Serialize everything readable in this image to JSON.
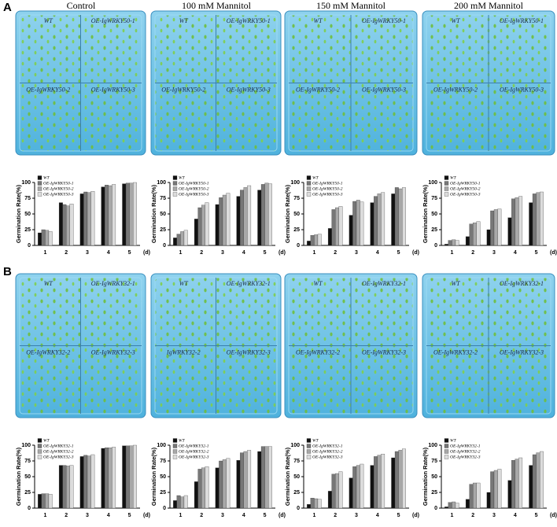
{
  "panel_labels": [
    "A",
    "B"
  ],
  "column_headers": [
    "Control",
    "100 mM Mannitol",
    "150 mM Mannitol",
    "200 mM Mannitol"
  ],
  "plates": [
    {
      "labels": [
        "WT",
        "OE-IgWRKY50-1",
        "OE-IgWRKY50-2",
        "OE-IgWRKY50-3"
      ]
    },
    {
      "labels": [
        "WT",
        "OE-IgWRKY50-1",
        "OE-IgWRKY50-2",
        "OE-IgWRKY50-3"
      ]
    },
    {
      "labels": [
        "WT",
        "OE-IgWRKY50-1",
        "OE-IgWRKY50-2",
        "OE-IgWRKY50-3"
      ]
    },
    {
      "labels": [
        "WT",
        "OE-IgWRKY50-1",
        "OE-IgWRKY50-2",
        "OE-IgWRKY50-3"
      ]
    },
    {
      "labels": [
        "WT",
        "OE-IgWRKY32-1",
        "OE-IgWRKY32-2",
        "OE-IgWRKY32-3"
      ]
    },
    {
      "labels": [
        "WT",
        "OE-IgWRKY32-1",
        "IgWRKY32-2",
        "OE-IgWRKY32-3"
      ]
    },
    {
      "labels": [
        "WT",
        "OE-IgWRKY32-1",
        "OE-IgWRKY32-2",
        "OE-IgWRKY32-3"
      ]
    },
    {
      "labels": [
        "WT",
        "OE-IgWRKY32-1",
        "OE-IgWRKY32-2",
        "OE-IgWRKY32-3"
      ]
    }
  ],
  "chart_data": [
    {
      "type": "bar",
      "ylabel": "Germination Rate(%)",
      "categories": [
        "1",
        "2",
        "3",
        "4",
        "5"
      ],
      "x_unit": "(d)",
      "ylim": [
        0,
        100
      ],
      "yticks": [
        0,
        25,
        50,
        75,
        100
      ],
      "series": [
        {
          "name": "WT",
          "color": "#111111",
          "values": [
            20,
            68,
            82,
            93,
            98
          ]
        },
        {
          "name": "OE-IgWRKY50-1",
          "color": "#777777",
          "values": [
            25,
            65,
            85,
            96,
            99
          ]
        },
        {
          "name": "OE-IgWRKY50-2",
          "color": "#a8a8a8",
          "values": [
            24,
            63,
            84,
            95,
            99
          ]
        },
        {
          "name": "OE-IgWRKY50-3",
          "color": "#dcdcdc",
          "values": [
            22,
            66,
            86,
            97,
            100
          ]
        }
      ]
    },
    {
      "type": "bar",
      "ylabel": "Germination Rate(%)",
      "categories": [
        "1",
        "2",
        "3",
        "4",
        "5"
      ],
      "x_unit": "(d)",
      "ylim": [
        0,
        100
      ],
      "yticks": [
        0,
        25,
        50,
        75,
        100
      ],
      "series": [
        {
          "name": "WT",
          "color": "#111111",
          "values": [
            12,
            42,
            65,
            78,
            88
          ]
        },
        {
          "name": "OE-IgWRKY50-1",
          "color": "#777777",
          "values": [
            18,
            60,
            76,
            88,
            97
          ]
        },
        {
          "name": "OE-IgWRKY50-2",
          "color": "#a8a8a8",
          "values": [
            22,
            64,
            80,
            92,
            99
          ]
        },
        {
          "name": "OE-IgWRKY50-3",
          "color": "#dcdcdc",
          "values": [
            24,
            68,
            83,
            95,
            98
          ]
        }
      ]
    },
    {
      "type": "bar",
      "ylabel": "Germination Rate(%)",
      "categories": [
        "1",
        "2",
        "3",
        "4",
        "5"
      ],
      "x_unit": "(d)",
      "ylim": [
        0,
        100
      ],
      "yticks": [
        0,
        25,
        50,
        75,
        100
      ],
      "series": [
        {
          "name": "WT",
          "color": "#111111",
          "values": [
            7,
            27,
            48,
            68,
            82
          ]
        },
        {
          "name": "OE-IgWRKY50-1",
          "color": "#777777",
          "values": [
            16,
            57,
            70,
            78,
            92
          ]
        },
        {
          "name": "OE-IgWRKY50-2",
          "color": "#a8a8a8",
          "values": [
            17,
            60,
            72,
            82,
            90
          ]
        },
        {
          "name": "OE-IgWRKY50-3",
          "color": "#dcdcdc",
          "values": [
            18,
            62,
            69,
            84,
            92
          ]
        }
      ]
    },
    {
      "type": "bar",
      "ylabel": "Germination Rate(%)",
      "categories": [
        "1",
        "2",
        "3",
        "4",
        "5"
      ],
      "x_unit": "(d)",
      "ylim": [
        0,
        100
      ],
      "yticks": [
        0,
        25,
        50,
        75,
        100
      ],
      "series": [
        {
          "name": "WT",
          "color": "#111111",
          "values": [
            2,
            14,
            25,
            44,
            68
          ]
        },
        {
          "name": "OE-IgWRKY50-1",
          "color": "#777777",
          "values": [
            8,
            34,
            55,
            74,
            82
          ]
        },
        {
          "name": "OE-IgWRKY50-2",
          "color": "#a8a8a8",
          "values": [
            9,
            36,
            57,
            76,
            84
          ]
        },
        {
          "name": "OE-IgWRKY50-3",
          "color": "#dcdcdc",
          "values": [
            8,
            38,
            58,
            78,
            85
          ]
        }
      ]
    },
    {
      "type": "bar",
      "ylabel": "Germination Rate(%)",
      "categories": [
        "1",
        "2",
        "3",
        "4",
        "5"
      ],
      "x_unit": "(d)",
      "ylim": [
        0,
        100
      ],
      "yticks": [
        0,
        25,
        50,
        75,
        100
      ],
      "series": [
        {
          "name": "WT",
          "color": "#111111",
          "values": [
            22,
            68,
            82,
            95,
            99
          ]
        },
        {
          "name": "OE-IgWRKY32-1",
          "color": "#777777",
          "values": [
            23,
            68,
            84,
            96,
            99
          ]
        },
        {
          "name": "OE-IgWRKY32-2",
          "color": "#a8a8a8",
          "values": [
            23,
            67,
            83,
            96,
            99
          ]
        },
        {
          "name": "OE-IgWRKY32-3",
          "color": "#dcdcdc",
          "values": [
            22,
            68,
            85,
            97,
            100
          ]
        }
      ]
    },
    {
      "type": "bar",
      "ylabel": "Germination Rate(%)",
      "categories": [
        "1",
        "2",
        "3",
        "4",
        "5"
      ],
      "x_unit": "(d)",
      "ylim": [
        0,
        100
      ],
      "yticks": [
        0,
        25,
        50,
        75,
        100
      ],
      "series": [
        {
          "name": "WT",
          "color": "#111111",
          "values": [
            12,
            42,
            64,
            76,
            90
          ]
        },
        {
          "name": "OE-IgWRKY32-1",
          "color": "#777777",
          "values": [
            20,
            62,
            75,
            88,
            98
          ]
        },
        {
          "name": "OE-IgWRKY32-2",
          "color": "#a8a8a8",
          "values": [
            18,
            64,
            77,
            90,
            98
          ]
        },
        {
          "name": "OE-IgWRKY32-3",
          "color": "#dcdcdc",
          "values": [
            20,
            66,
            79,
            92,
            98
          ]
        }
      ]
    },
    {
      "type": "bar",
      "ylabel": "Germination Rate(%)",
      "categories": [
        "1",
        "2",
        "3",
        "4",
        "5"
      ],
      "x_unit": "(d)",
      "ylim": [
        0,
        100
      ],
      "yticks": [
        0,
        25,
        50,
        75,
        100
      ],
      "series": [
        {
          "name": "WT",
          "color": "#111111",
          "values": [
            6,
            27,
            48,
            68,
            80
          ]
        },
        {
          "name": "OE-IgWRKY32-1",
          "color": "#777777",
          "values": [
            16,
            54,
            66,
            82,
            90
          ]
        },
        {
          "name": "OE-IgWRKY32-2",
          "color": "#a8a8a8",
          "values": [
            15,
            55,
            68,
            84,
            92
          ]
        },
        {
          "name": "OE-IgWRKY32-3",
          "color": "#dcdcdc",
          "values": [
            14,
            58,
            70,
            86,
            94
          ]
        }
      ]
    },
    {
      "type": "bar",
      "ylabel": "Germination Rate(%)",
      "categories": [
        "1",
        "2",
        "3",
        "4",
        "5"
      ],
      "x_unit": "(d)",
      "ylim": [
        0,
        100
      ],
      "yticks": [
        0,
        25,
        50,
        75,
        100
      ],
      "series": [
        {
          "name": "WT",
          "color": "#111111",
          "values": [
            2,
            14,
            25,
            44,
            68
          ]
        },
        {
          "name": "OE-IgWRKY32-1",
          "color": "#777777",
          "values": [
            9,
            38,
            58,
            76,
            85
          ]
        },
        {
          "name": "OE-IgWRKY32-2",
          "color": "#a8a8a8",
          "values": [
            10,
            40,
            60,
            78,
            88
          ]
        },
        {
          "name": "OE-IgWRKY32-3",
          "color": "#dcdcdc",
          "values": [
            8,
            40,
            62,
            80,
            90
          ]
        }
      ]
    }
  ]
}
